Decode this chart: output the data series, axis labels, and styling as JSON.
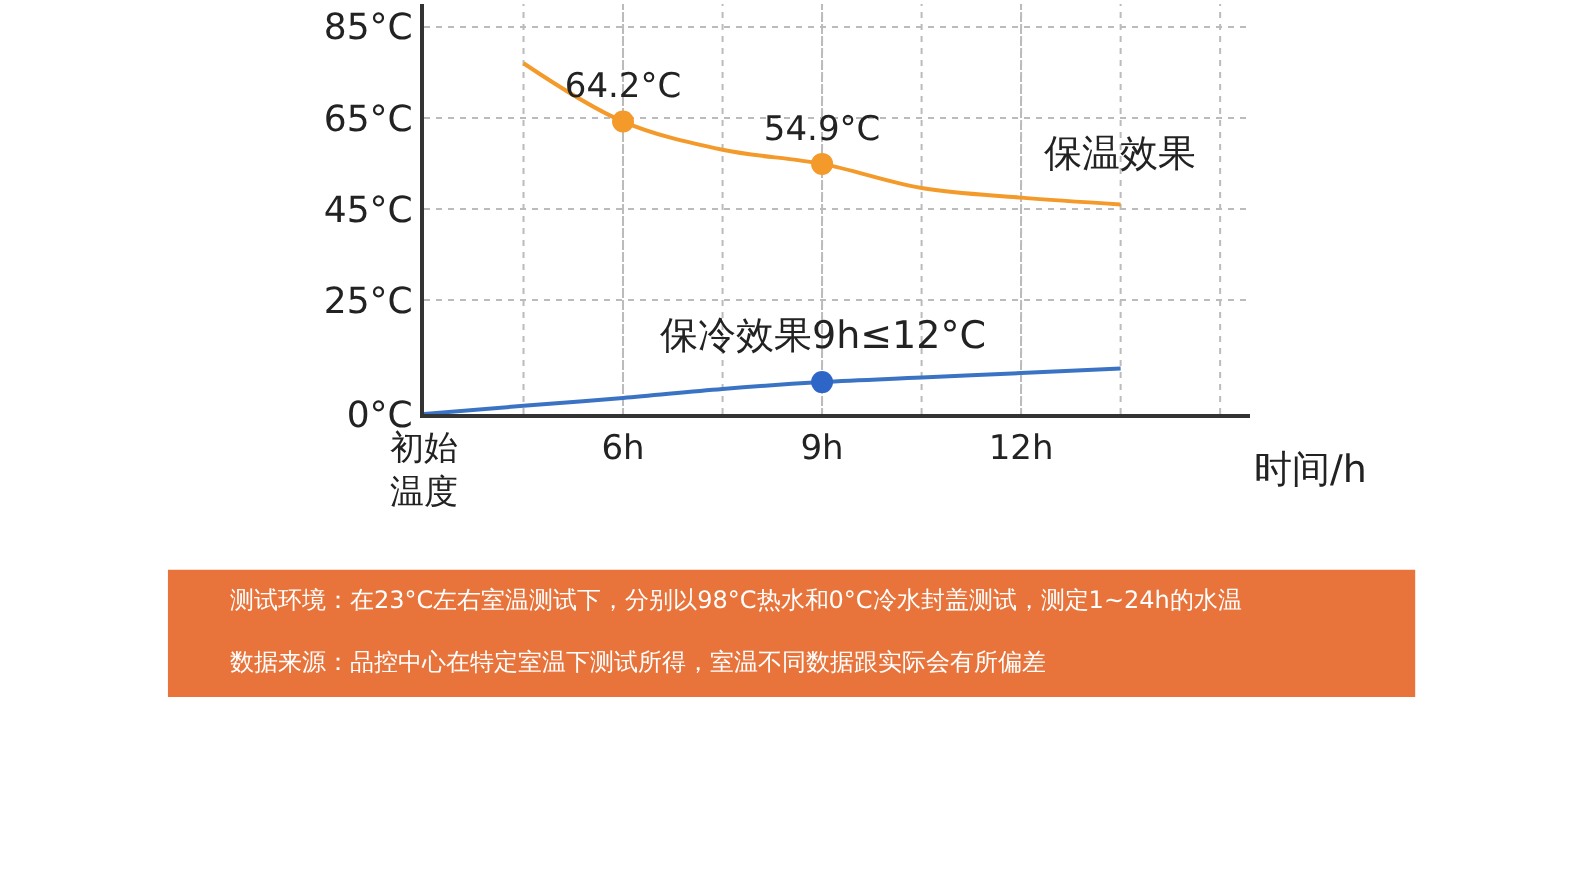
{
  "chart_data": {
    "type": "line",
    "categories": [
      "初始温度",
      null,
      "6h",
      null,
      "9h",
      null,
      "12h",
      null,
      null
    ],
    "xlabel": "时间/h",
    "ylim": [
      0,
      90
    ],
    "yticks": [
      {
        "value": 0,
        "label": "0°C"
      },
      {
        "value": 25,
        "label": "25°C"
      },
      {
        "value": 45,
        "label": "45°C"
      },
      {
        "value": 65,
        "label": "65°C"
      },
      {
        "value": 85,
        "label": "85°C"
      }
    ],
    "grid": true,
    "series": [
      {
        "name": "保温效果",
        "color": "#f39a2a",
        "marker": "none",
        "values": [
          null,
          77,
          64.2,
          58,
          54.9,
          49.6,
          47.5,
          46,
          null
        ]
      },
      {
        "name": "保冷效果9h≤12°C",
        "color": "#3b73c4",
        "marker": "none",
        "values": [
          0,
          1.8,
          3.5,
          5.5,
          7,
          8,
          9,
          10,
          null
        ]
      },
      {
        "type": "scatter",
        "color": "#f39a2a",
        "marker": "circle",
        "x": [
          "6h",
          "9h"
        ],
        "values": [
          64.2,
          54.9
        ],
        "value_labels": [
          "64.2°C",
          "54.9°C"
        ]
      },
      {
        "type": "scatter",
        "color": "#2e66c8",
        "marker": "circle",
        "x": [
          "9h"
        ],
        "values": [
          7
        ]
      }
    ],
    "annotations": [
      "测试环境：在23°C左右室温测试下，分别以98°C热水和0°C冷水封盖测试，测定1~24h的水温",
      "数据来源：品控中心在特定室温下测试所得，室温不同数据跟实际会有所偏差"
    ]
  }
}
